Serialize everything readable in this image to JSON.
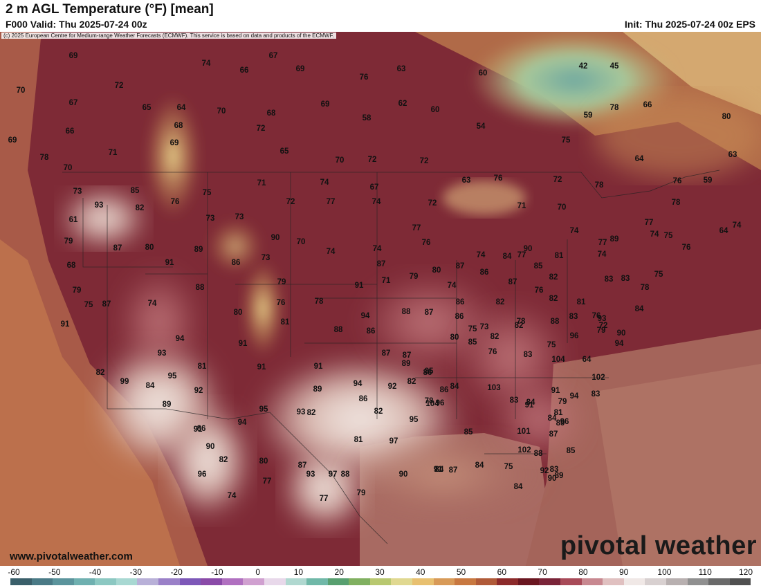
{
  "header": {
    "title": "2 m AGL Temperature (°F) [mean]",
    "valid": "F000 Valid: Thu 2025-07-24 00z",
    "init": "Init: Thu 2025-07-24 00z EPS"
  },
  "map": {
    "copyright": "(c) 2025 European Centre for Medium-range Weather Forecasts (ECMWF). This service is based on data and products of the ECMWF.",
    "website": "www.pivotalweather.com",
    "brand": "pivotal weather",
    "temperature_labels": [
      "69",
      "67",
      "74",
      "69",
      "63",
      "66",
      "60",
      "42",
      "45",
      "70",
      "72",
      "76",
      "67",
      "65",
      "64",
      "70",
      "68",
      "69",
      "62",
      "60",
      "78",
      "66",
      "66",
      "68",
      "72",
      "58",
      "54",
      "59",
      "80",
      "69",
      "71",
      "69",
      "65",
      "70",
      "72",
      "72",
      "75",
      "64",
      "63",
      "78",
      "70",
      "71",
      "74",
      "67",
      "63",
      "76",
      "72",
      "78",
      "59",
      "73",
      "85",
      "75",
      "72",
      "77",
      "74",
      "72",
      "71",
      "70",
      "76",
      "78",
      "93",
      "82",
      "76",
      "73",
      "73",
      "77",
      "77",
      "74",
      "64",
      "61",
      "90",
      "70",
      "74",
      "79",
      "87",
      "80",
      "89",
      "86",
      "73",
      "74",
      "74",
      "76",
      "74",
      "90",
      "84",
      "89",
      "77",
      "75",
      "76",
      "68",
      "91",
      "87",
      "79",
      "80",
      "87",
      "86",
      "85",
      "82",
      "81",
      "74",
      "77",
      "74",
      "79",
      "74",
      "88",
      "79",
      "91",
      "71",
      "74",
      "87",
      "83",
      "81",
      "83",
      "78",
      "75",
      "75",
      "87",
      "76",
      "78",
      "88",
      "87",
      "86",
      "82",
      "76",
      "82",
      "88",
      "93",
      "84",
      "76",
      "83",
      "82",
      "73",
      "94",
      "91",
      "80",
      "81",
      "88",
      "86",
      "86",
      "78",
      "79",
      "75",
      "96",
      "90",
      "94",
      "91",
      "93",
      "87",
      "87",
      "80",
      "76",
      "83",
      "64",
      "94",
      "72",
      "82",
      "81",
      "91",
      "91",
      "89",
      "86",
      "85",
      "82",
      "75",
      "104",
      "102",
      "99",
      "84",
      "92",
      "95",
      "89",
      "94",
      "92",
      "85",
      "86",
      "84",
      "103",
      "91",
      "91",
      "94",
      "96",
      "83",
      "89",
      "93",
      "95",
      "86",
      "82",
      "78",
      "83",
      "84",
      "79",
      "89",
      "84",
      "91",
      "90",
      "94",
      "82",
      "80",
      "82",
      "104",
      "95",
      "96",
      "85",
      "101",
      "81",
      "102",
      "88",
      "87",
      "86",
      "82",
      "77",
      "87",
      "81",
      "93",
      "88",
      "97",
      "91",
      "84",
      "85",
      "83",
      "92",
      "89",
      "90",
      "96",
      "74",
      "97",
      "77",
      "79",
      "90",
      "84",
      "87",
      "75",
      "84"
    ],
    "legend_ticks": [
      "-60",
      "-50",
      "-40",
      "-30",
      "-20",
      "-10",
      "0",
      "10",
      "20",
      "30",
      "40",
      "50",
      "60",
      "70",
      "80",
      "90",
      "100",
      "110",
      "120"
    ],
    "legend_colors": [
      "#3a5f6a",
      "#4a7a86",
      "#5b949c",
      "#6fb0b0",
      "#8cc8c2",
      "#a8d8d2",
      "#b8b0d8",
      "#9a80c8",
      "#7d58b8",
      "#8a4aa8",
      "#b070c0",
      "#d0a0d0",
      "#e8d8ea",
      "#b0d8d0",
      "#70b8a8",
      "#58a070",
      "#80b060",
      "#b8c870",
      "#e0d890",
      "#e8c070",
      "#d89a58",
      "#c87840",
      "#b05a38",
      "#8c2a2a",
      "#6a1620",
      "#7a2438",
      "#a84a58",
      "#c88890",
      "#e0c0c0",
      "#f0e8e6",
      "#d8d0d0",
      "#b8b0b0",
      "#909090",
      "#6a6a6a",
      "#505050"
    ]
  }
}
